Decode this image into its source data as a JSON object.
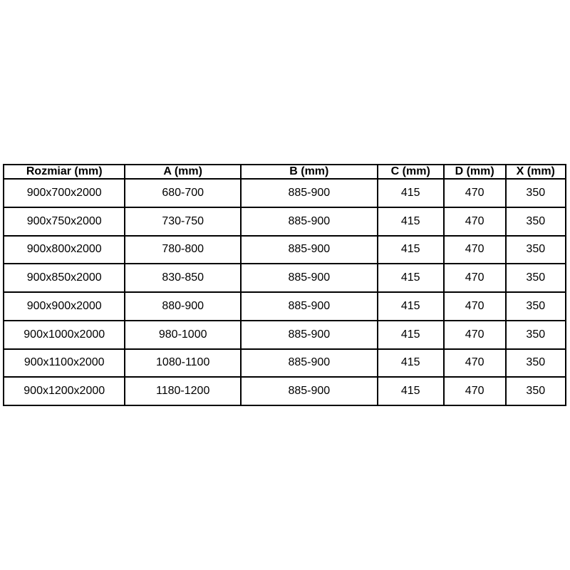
{
  "table": {
    "headers": [
      "Rozmiar (mm)",
      "A (mm)",
      "B (mm)",
      "C (mm)",
      "D (mm)",
      "X (mm)"
    ],
    "rows": [
      [
        "900x700x2000",
        "680-700",
        "885-900",
        "415",
        "470",
        "350"
      ],
      [
        "900x750x2000",
        "730-750",
        "885-900",
        "415",
        "470",
        "350"
      ],
      [
        "900x800x2000",
        "780-800",
        "885-900",
        "415",
        "470",
        "350"
      ],
      [
        "900x850x2000",
        "830-850",
        "885-900",
        "415",
        "470",
        "350"
      ],
      [
        "900x900x2000",
        "880-900",
        "885-900",
        "415",
        "470",
        "350"
      ],
      [
        "900x1000x2000",
        "980-1000",
        "885-900",
        "415",
        "470",
        "350"
      ],
      [
        "900x1100x2000",
        "1080-1100",
        "885-900",
        "415",
        "470",
        "350"
      ],
      [
        "900x1200x2000",
        "1180-1200",
        "885-900",
        "415",
        "470",
        "350"
      ]
    ],
    "text_color": "#000000",
    "border_color": "#000000",
    "background_color": "#ffffff"
  }
}
